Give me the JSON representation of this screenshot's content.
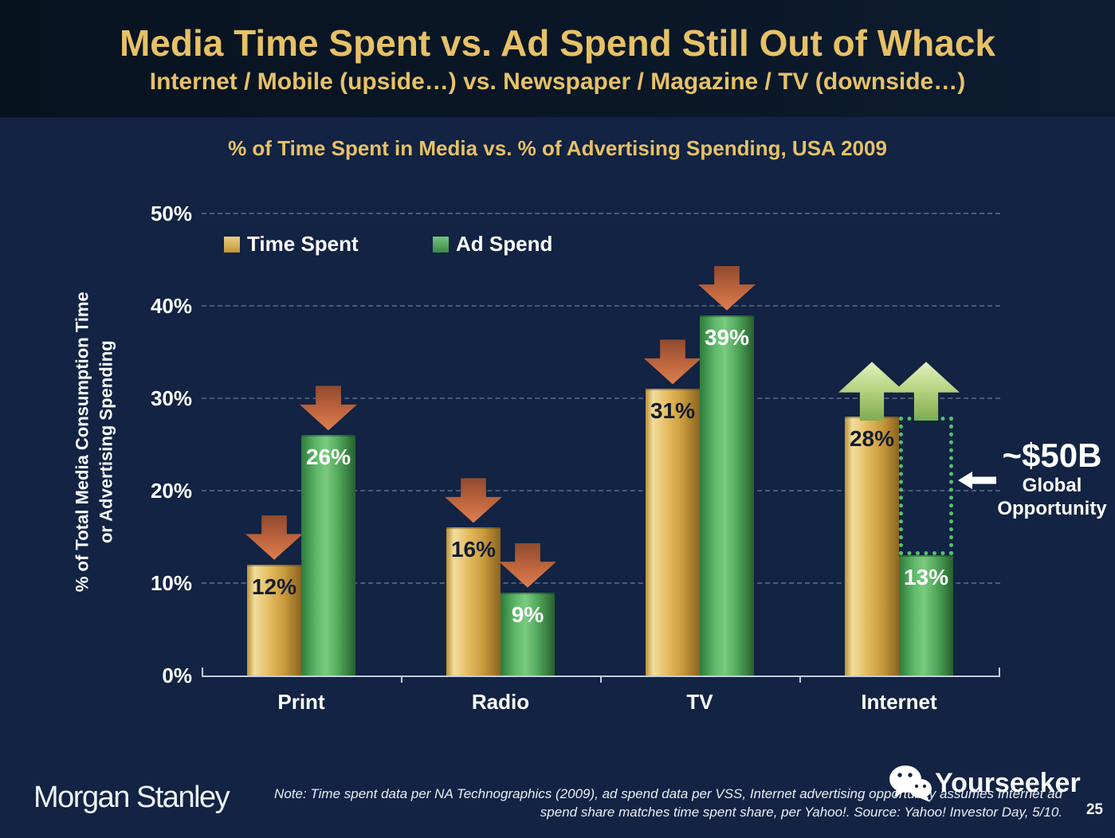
{
  "colors": {
    "background": "#122343",
    "header_background": "#0a1727",
    "gold_accent": "#e7c167",
    "bar_gold": "#dfb457",
    "bar_green": "#5eb868",
    "arrow_down_orange": "#c0663e",
    "arrow_up_green": "#b8d584",
    "gap_box_green": "#4ec46a",
    "axis_line": "#c2cddd",
    "text_white": "#ffffff"
  },
  "header": {
    "title": "Media Time Spent vs. Ad Spend Still Out of Whack",
    "subtitle": "Internet / Mobile (upside…) vs. Newspaper / Magazine / TV (downside…)"
  },
  "chart_data": {
    "type": "bar",
    "title": "% of Time Spent in Media vs. % of Advertising Spending, USA 2009",
    "categories": [
      "Print",
      "Radio",
      "TV",
      "Internet"
    ],
    "series": [
      {
        "name": "Time Spent",
        "color": "#dfb457",
        "value_label_color": "#131c2f",
        "values": [
          12,
          16,
          31,
          28
        ],
        "trend": [
          "down",
          "down",
          "down",
          "up"
        ]
      },
      {
        "name": "Ad Spend",
        "color": "#5eb868",
        "value_label_color": "#ffffff",
        "values": [
          26,
          9,
          39,
          13
        ],
        "trend": [
          "down",
          "down",
          "down",
          "up"
        ]
      }
    ],
    "value_suffix": "%",
    "ylabel_line1": "% of Total Media Consumption Time",
    "ylabel_line2": "or Advertising Spending",
    "ylim": [
      0,
      50
    ],
    "ytick_step": 10,
    "ytick_labels": [
      "0%",
      "10%",
      "20%",
      "30%",
      "40%",
      "50%"
    ],
    "grid": "dashed-horizontal",
    "legend_position": "top-left-inside",
    "gap_box": {
      "category": "Internet",
      "box_over_series": "Ad Spend",
      "top_from_series": "Time Spent",
      "style": "green-dotted"
    }
  },
  "annotation": {
    "value": "~$50B",
    "line1": "Global",
    "line2": "Opportunity",
    "arrow_direction": "left"
  },
  "footer": {
    "brand": "Morgan Stanley",
    "note_line1": "Note: Time spent data per NA Technographics (2009), ad spend data per VSS, Internet advertising opportunity assumes Internet ad",
    "note_line2": "spend share matches time spent share, per Yahoo!. Source: Yahoo! Investor Day, 5/10.",
    "watermark": "Yourseeker",
    "page_number": "25"
  }
}
